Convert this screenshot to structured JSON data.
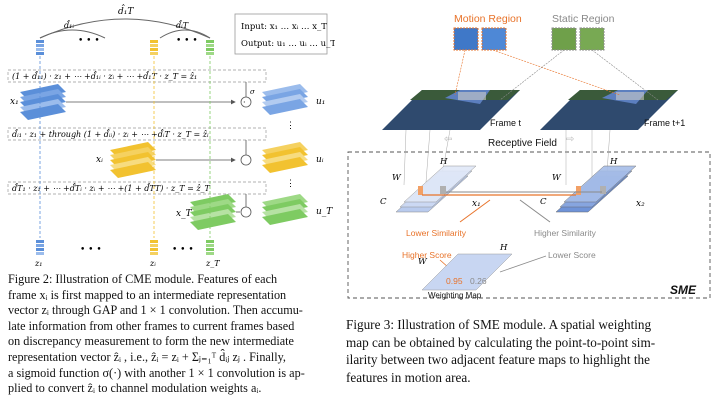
{
  "left_figure": {
    "top_label": "d̂₁T",
    "arc_labels": [
      "d̂₁ᵢ",
      "d̂ᵢT"
    ],
    "legend": {
      "input": "Input:  x₁ … xᵢ … x_T",
      "output": "Output:  u₁ … uᵢ … u_T"
    },
    "eq_row_1": "(1 + d̂₁₁) · z₁ +   ⋯   +d̂₁ᵢ · zᵢ +      ⋯      +d̂₁T · z_T = ẑ₁",
    "eq_row_i": "d̂ᵢ₁ · z₁ +     through   (1 + d̂ᵢᵢ) · zᵢ +    ⋯    +d̂ᵢT · z_T = ẑᵢ",
    "eq_row_T": "d̂T₁ · z₁ +      ⋯      +d̂Tᵢ · zᵢ +   ⋯   +(1 + d̂TT) · z_T = ẑ_T",
    "x_labels": [
      "x₁",
      "xᵢ",
      "x_T"
    ],
    "u_labels": [
      "u₁",
      "uᵢ",
      "u_T"
    ],
    "z_labels": [
      "z₁",
      "zᵢ",
      "z_T"
    ],
    "sigma": "σ",
    "dots": "• • •",
    "colors": {
      "blue": "#5b8fd9",
      "yellow": "#f2c230",
      "green": "#7ecb62",
      "gray": "#888888"
    }
  },
  "left_caption": {
    "lines": [
      "Figure 2: Illustration of CME module. Features of each",
      "frame xᵢ is first mapped to an intermediate representation",
      "vector zᵢ through GAP and 1 × 1 convolution. Then accumu-",
      "late information from other frames to current frames based",
      "on discrepancy measurement to form the new intermediate",
      "representation vector ẑᵢ , i.e., ẑᵢ = zᵢ + Σⱼ₌₁ᵀ d̂ᵢⱼ zⱼ . Finally,",
      "a sigmoid function σ(·) with another 1 × 1 convolution is ap-",
      "plied to convert ẑᵢ to channel modulation weights aᵢ."
    ]
  },
  "right_figure": {
    "motion_region": "Motion Region",
    "static_region": "Static Region",
    "frame_t": "Frame t",
    "frame_t1": "Frame t+1",
    "receptive_field": "Receptive Field",
    "w": "W",
    "h": "H",
    "c": "C",
    "x1": "x₁",
    "x2": "x₂",
    "lower_similarity": "Lower Similarity",
    "higher_similarity": "Higher Similarity",
    "higher_score": "Higher Score",
    "lower_score": "Lower Score",
    "score_high": "0.95",
    "score_low": "0.26",
    "weighting_map": "Weighting Map",
    "sme": "SME",
    "colors": {
      "orange": "#e8732a",
      "blue": "#6f93d8",
      "gray": "#8a8a8a"
    }
  },
  "right_caption": {
    "lines": [
      "Figure 3: Illustration of SME module. A spatial weighting",
      "map can be obtained by calculating the point-to-point sim-",
      "ilarity between two adjacent feature maps to highlight the",
      "features in motion area."
    ]
  }
}
